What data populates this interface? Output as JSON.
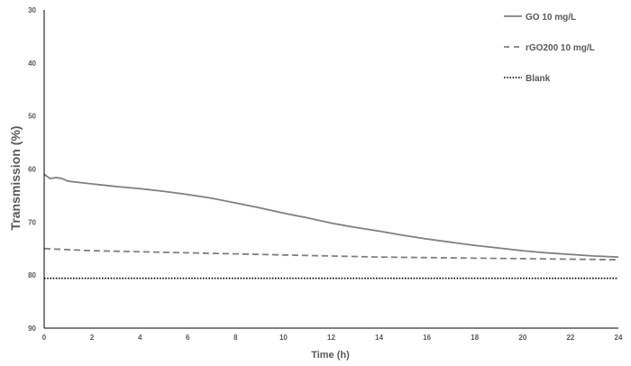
{
  "chart_data": {
    "type": "line",
    "title": "",
    "xlabel": "Time (h)",
    "ylabel": "Transmission (%)",
    "xlim": [
      0,
      24
    ],
    "ylim": [
      30,
      90
    ],
    "y_inverted": true,
    "x_ticks": [
      0,
      2,
      4,
      6,
      8,
      10,
      12,
      14,
      16,
      18,
      20,
      22,
      24
    ],
    "y_ticks": [
      30,
      40,
      50,
      60,
      70,
      80,
      90
    ],
    "grid": false,
    "legend_position": "top-right",
    "series": [
      {
        "name": "GO 10 mg/L",
        "style": "solid",
        "color": "#7f7f7f",
        "x": [
          0,
          0.25,
          0.5,
          0.75,
          1,
          2,
          3,
          4,
          5,
          6,
          7,
          8,
          9,
          10,
          11,
          12,
          13,
          14,
          15,
          16,
          17,
          18,
          19,
          20,
          21,
          22,
          23,
          24
        ],
        "y": [
          61.0,
          61.8,
          61.6,
          61.8,
          62.3,
          62.8,
          63.3,
          63.7,
          64.2,
          64.8,
          65.5,
          66.4,
          67.3,
          68.3,
          69.2,
          70.2,
          71.0,
          71.7,
          72.5,
          73.2,
          73.8,
          74.4,
          74.9,
          75.4,
          75.8,
          76.1,
          76.4,
          76.6
        ]
      },
      {
        "name": "rGO200 10 mg/L",
        "style": "dashed",
        "color": "#7f7f7f",
        "x": [
          0,
          1,
          2,
          3,
          4,
          6,
          8,
          10,
          12,
          14,
          16,
          18,
          20,
          22,
          24
        ],
        "y": [
          75.0,
          75.2,
          75.4,
          75.5,
          75.6,
          75.8,
          76.0,
          76.2,
          76.4,
          76.6,
          76.7,
          76.8,
          76.9,
          77.0,
          77.1
        ]
      },
      {
        "name": "Blank",
        "style": "dotted",
        "color": "#000000",
        "x": [
          0,
          24
        ],
        "y": [
          80.6,
          80.6
        ]
      }
    ]
  }
}
